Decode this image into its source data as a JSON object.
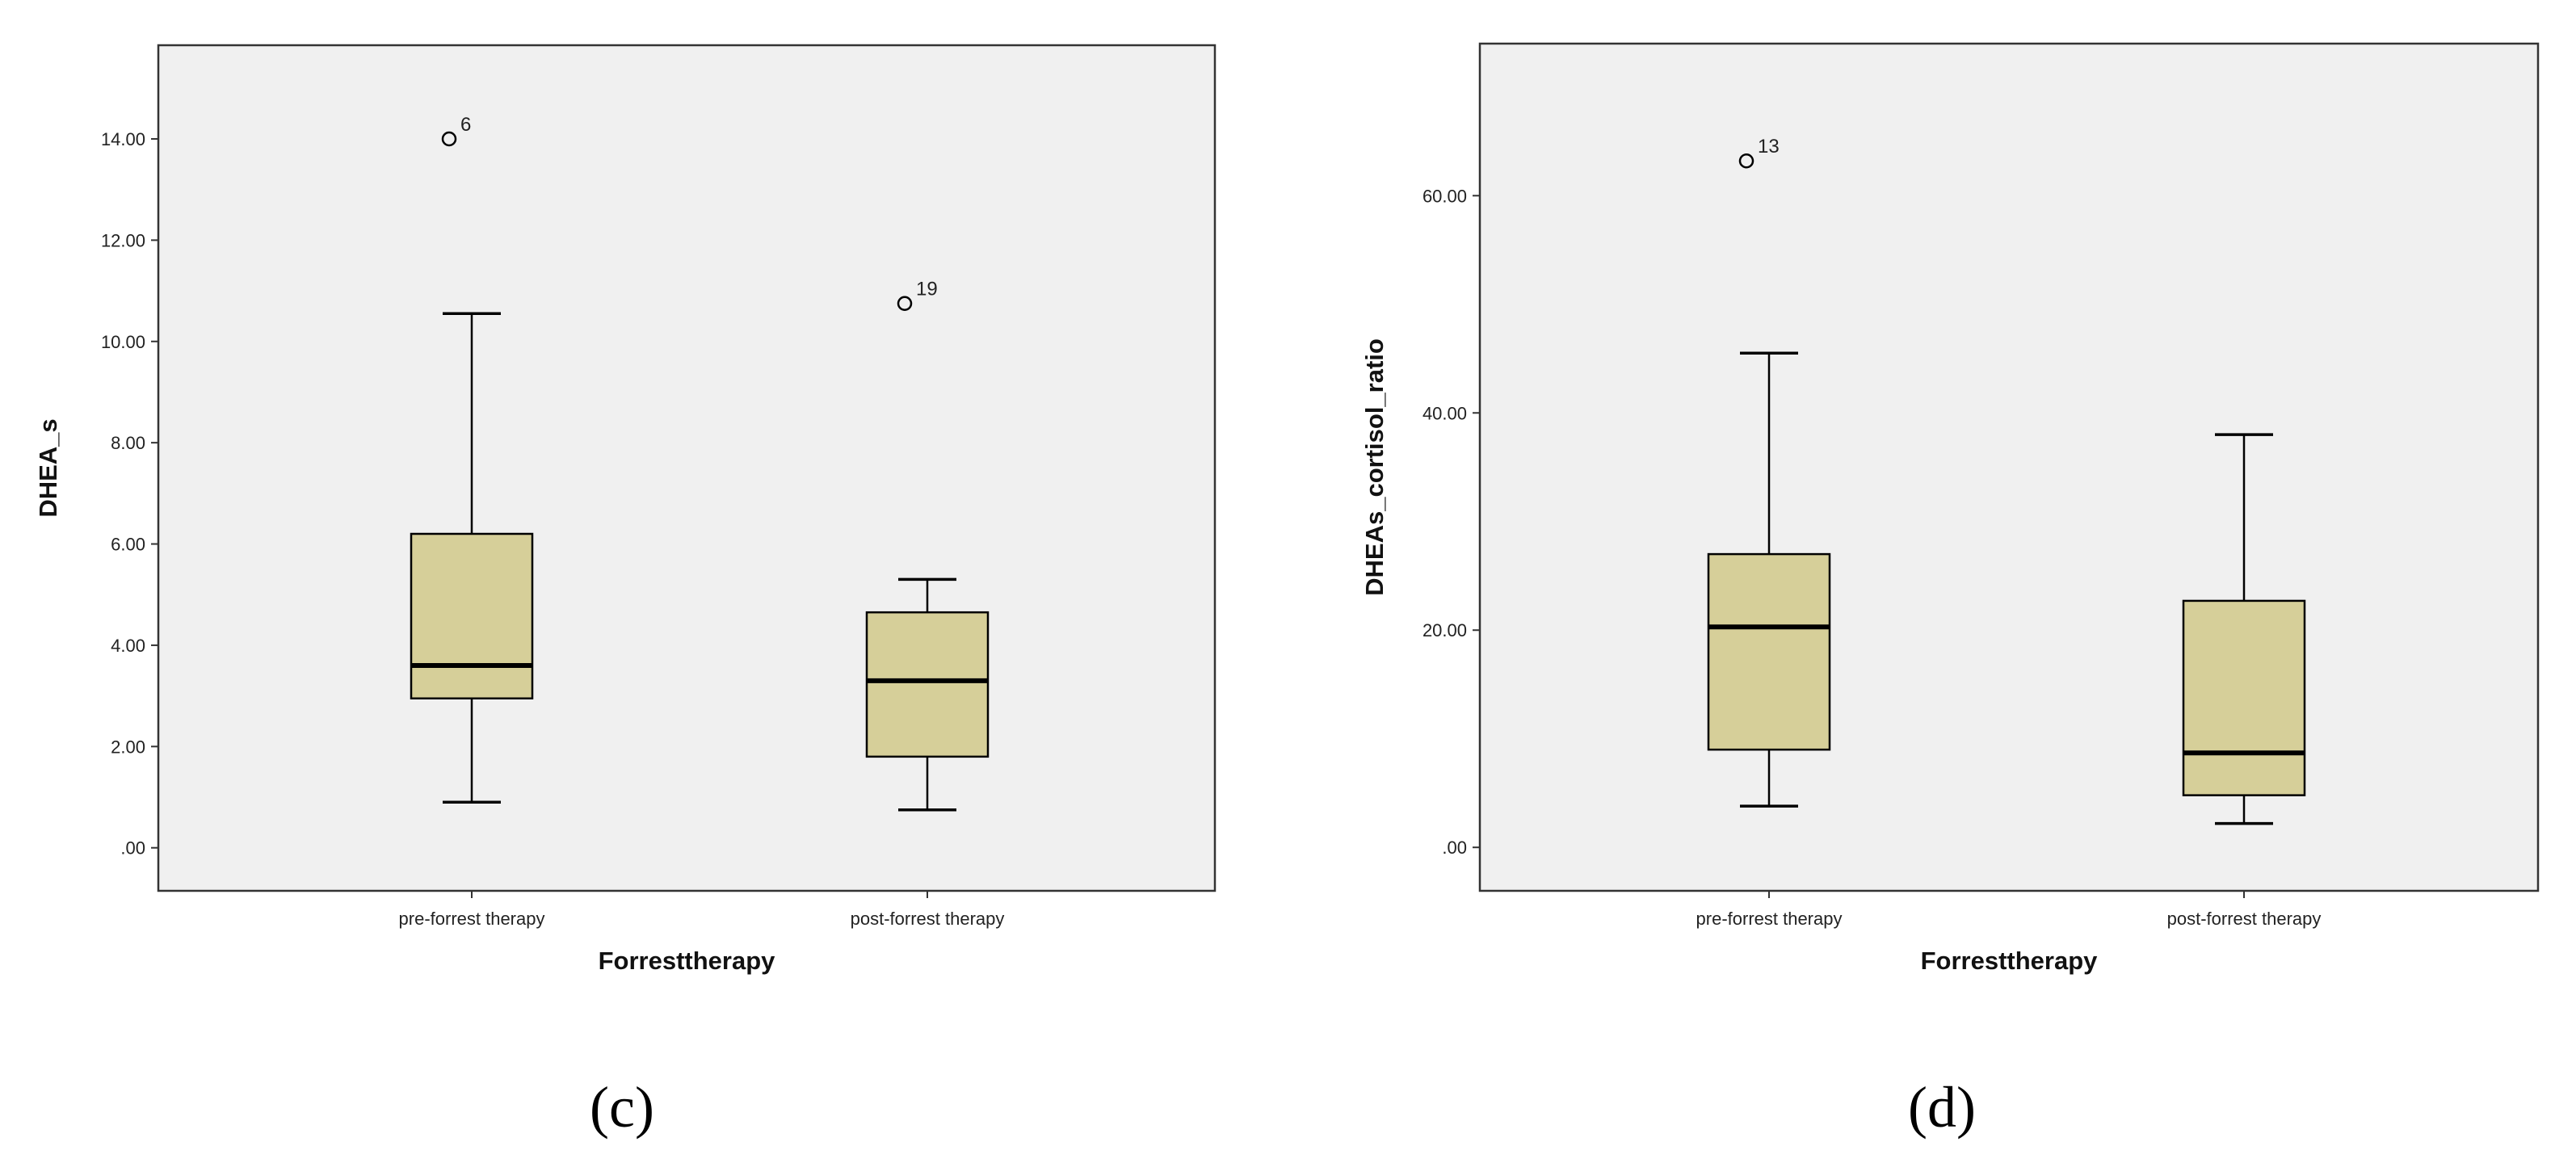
{
  "colors": {
    "plot_bg": "#f0f0f0",
    "box_fill": "#d6cf99",
    "line": "#000000"
  },
  "chart_data": [
    {
      "type": "box",
      "panel_label": "(c)",
      "xlabel": "Forresttherapy",
      "ylabel": "DHEA_s",
      "ylim": [
        -0.85,
        15.85
      ],
      "yticks": [
        0,
        2,
        4,
        6,
        8,
        10,
        12,
        14
      ],
      "ytick_labels": [
        ".00",
        "2.00",
        "4.00",
        "6.00",
        "8.00",
        "10.00",
        "12.00",
        "14.00"
      ],
      "categories": [
        "pre-forrest therapy",
        "post-forrest therapy"
      ],
      "boxes": [
        {
          "whisker_low": 0.9,
          "q1": 2.95,
          "median": 3.6,
          "q3": 6.2,
          "whisker_high": 10.55,
          "outliers": [
            {
              "value": 14.0,
              "label": "6"
            }
          ]
        },
        {
          "whisker_low": 0.75,
          "q1": 1.8,
          "median": 3.3,
          "q3": 4.65,
          "whisker_high": 5.3,
          "outliers": [
            {
              "value": 10.75,
              "label": "19"
            }
          ]
        }
      ]
    },
    {
      "type": "box",
      "panel_label": "(d)",
      "xlabel": "Forresttherapy",
      "ylabel": "DHEAs_cortisol_ratio",
      "ylim": [
        -4,
        74
      ],
      "yticks": [
        0,
        20,
        40,
        60
      ],
      "ytick_labels": [
        ".00",
        "20.00",
        "40.00",
        "60.00"
      ],
      "categories": [
        "pre-forrest therapy",
        "post-forrest therapy"
      ],
      "boxes": [
        {
          "whisker_low": 3.8,
          "q1": 9.0,
          "median": 20.3,
          "q3": 27.0,
          "whisker_high": 45.5,
          "outliers": [
            {
              "value": 63.2,
              "label": "13"
            }
          ]
        },
        {
          "whisker_low": 2.2,
          "q1": 4.8,
          "median": 8.7,
          "q3": 22.7,
          "whisker_high": 38.0,
          "outliers": []
        }
      ]
    }
  ]
}
